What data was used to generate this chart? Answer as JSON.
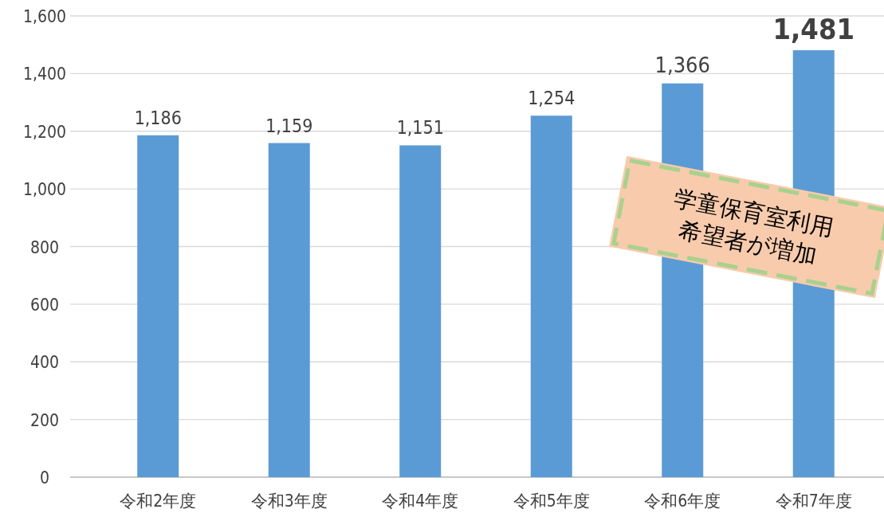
{
  "chart_data": {
    "type": "bar",
    "categories": [
      "令和2年度",
      "令和3年度",
      "令和4年度",
      "令和5年度",
      "令和6年度",
      "令和7年度"
    ],
    "values": [
      1186,
      1159,
      1151,
      1254,
      1366,
      1481
    ],
    "color": "#5b9bd5",
    "ylim": [
      0,
      1600
    ],
    "yticks": [
      0,
      200,
      400,
      600,
      800,
      {
        "value": 1000,
        "label": "1,000"
      },
      {
        "value": 1200,
        "label": "1,200"
      },
      {
        "value": 1400,
        "label": "1,400"
      },
      {
        "value": 1600,
        "label": "1,600"
      }
    ],
    "grid": "y",
    "value_labels": [
      "1,186",
      "1,159",
      "1,151",
      "1,254",
      "1,366",
      "1,481"
    ],
    "annotations": [
      "学童保育室利用希望者が増加"
    ]
  }
}
